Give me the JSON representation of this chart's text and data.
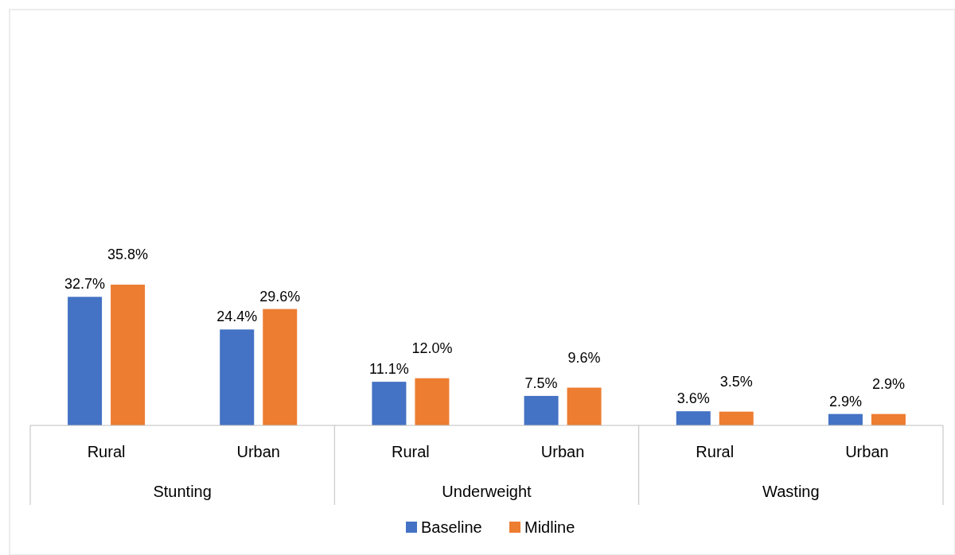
{
  "chart_data": {
    "type": "bar",
    "categories": [
      "Rural",
      "Urban",
      "Rural",
      "Urban",
      "Rural",
      "Urban"
    ],
    "annotations": [
      "Stunting",
      "Underweight",
      "Wasting"
    ],
    "series": [
      {
        "name": "Baseline",
        "color": "#4472c4",
        "values": [
          32.7,
          24.4,
          11.1,
          7.5,
          3.6,
          2.9
        ],
        "value_labels": [
          "32.7%",
          "24.4%",
          "11.1%",
          "7.5%",
          "3.6%",
          "2.9%"
        ]
      },
      {
        "name": "Midline",
        "color": "#ed7d31",
        "values": [
          35.8,
          29.6,
          12.0,
          9.6,
          3.5,
          2.9
        ],
        "value_labels": [
          "35.8%",
          "29.6%",
          "12.0%",
          "9.6%",
          "3.5%",
          "2.9%"
        ]
      }
    ],
    "tick_labels": "x",
    "legend": "bottom",
    "grid": false
  }
}
